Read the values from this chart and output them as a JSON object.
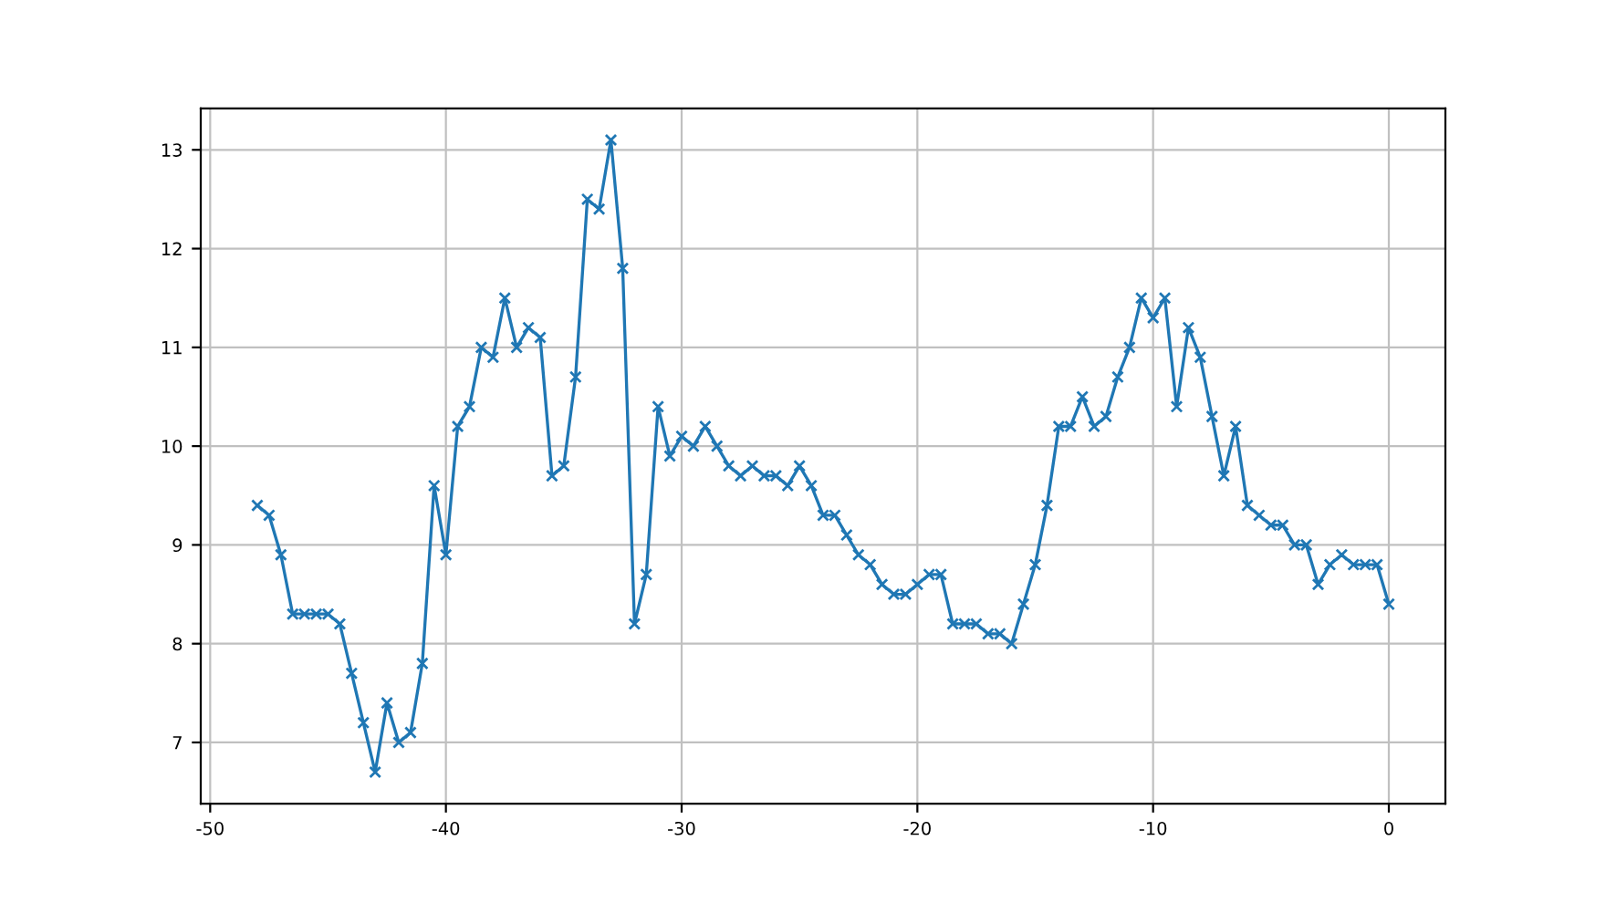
{
  "chart_data": {
    "type": "line",
    "x": [
      -48,
      -47.5,
      -47,
      -46.5,
      -46,
      -45.5,
      -45,
      -44.5,
      -44,
      -43.5,
      -43,
      -42.5,
      -42,
      -41.5,
      -41,
      -40.5,
      -40,
      -39.5,
      -39,
      -38.5,
      -38,
      -37.5,
      -37,
      -36.5,
      -36,
      -35.5,
      -35,
      -34.5,
      -34,
      -33.5,
      -33,
      -32.5,
      -32,
      -31.5,
      -31,
      -30.5,
      -30,
      -29.5,
      -29,
      -28.5,
      -28,
      -27.5,
      -27,
      -26.5,
      -26,
      -25.5,
      -25,
      -24.5,
      -24,
      -23.5,
      -23,
      -22.5,
      -22,
      -21.5,
      -21,
      -20.5,
      -20,
      -19.5,
      -19,
      -18.5,
      -18,
      -17.5,
      -17,
      -16.5,
      -16,
      -15.5,
      -15,
      -14.5,
      -14,
      -13.5,
      -13,
      -12.5,
      -12,
      -11.5,
      -11,
      -10.5,
      -10,
      -9.5,
      -9,
      -8.5,
      -8,
      -7.5,
      -7,
      -6.5,
      -6,
      -5.5,
      -5,
      -4.5,
      -4,
      -3.5,
      -3,
      -2.5,
      -2,
      -1.5,
      -1,
      -0.5,
      0
    ],
    "series": [
      {
        "color": "#1f77b4",
        "values": [
          9.4,
          9.3,
          8.9,
          8.3,
          8.3,
          8.3,
          8.3,
          8.2,
          7.7,
          7.2,
          6.7,
          7.4,
          7.0,
          7.1,
          7.8,
          9.6,
          8.9,
          10.2,
          10.4,
          11.0,
          10.9,
          11.5,
          11.0,
          11.2,
          11.1,
          9.7,
          9.8,
          10.7,
          12.5,
          12.4,
          13.1,
          11.8,
          8.2,
          8.7,
          10.4,
          9.9,
          10.1,
          10.0,
          10.2,
          10.0,
          9.8,
          9.7,
          9.8,
          9.7,
          9.7,
          9.6,
          9.8,
          9.6,
          9.3,
          9.3,
          9.1,
          8.9,
          8.8,
          8.6,
          8.5,
          8.5,
          8.6,
          8.7,
          8.7,
          8.2,
          8.2,
          8.2,
          8.1,
          8.1,
          8.0,
          8.4,
          8.8,
          9.4,
          10.2,
          10.2,
          10.5,
          10.2,
          10.3,
          10.7,
          11.0,
          11.5,
          11.3,
          11.5,
          10.4,
          11.2,
          10.9,
          10.3,
          9.7,
          10.2,
          9.4,
          9.3,
          9.2,
          9.2,
          9.0,
          9.0,
          8.6,
          8.8,
          8.9,
          8.8,
          8.8,
          8.8,
          8.4
        ]
      }
    ],
    "xlim": [
      -50.4,
      2.4
    ],
    "ylim": [
      6.38,
      13.42
    ],
    "xticks": [
      -50,
      -40,
      -30,
      -20,
      -10,
      0
    ],
    "yticks": [
      7,
      8,
      9,
      10,
      11,
      12,
      13
    ],
    "grid": true,
    "marker": "cross",
    "line_style": "solid"
  }
}
